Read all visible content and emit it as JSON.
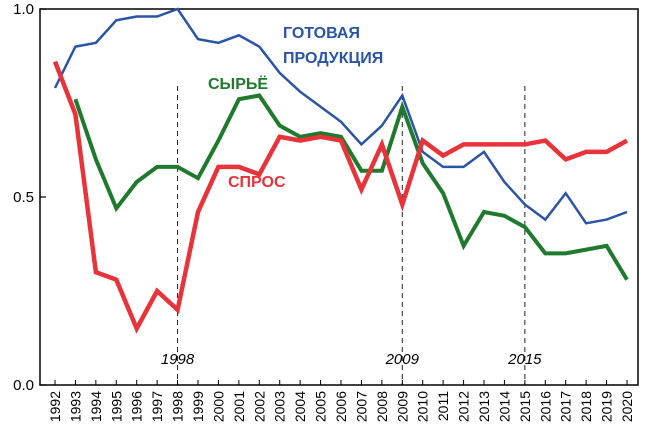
{
  "chart_data": {
    "type": "line",
    "x": [
      1992,
      1993,
      1994,
      1995,
      1996,
      1997,
      1998,
      1999,
      2000,
      2001,
      2002,
      2003,
      2004,
      2005,
      2006,
      2007,
      2008,
      2009,
      2010,
      2011,
      2012,
      2013,
      2014,
      2015,
      2016,
      2017,
      2018,
      2019,
      2020
    ],
    "xlim": [
      1992,
      2020
    ],
    "ylim": [
      0.0,
      1.0
    ],
    "yticks": [
      "0.0",
      "0.5",
      "1.0"
    ],
    "grid": false,
    "title": "",
    "xlabel": "",
    "ylabel": "",
    "series": [
      {
        "name": "ГОТОВАЯ ПРОДУКЦИЯ",
        "label_lines": [
          "ГОТОВАЯ",
          "ПРОДУКЦИЯ"
        ],
        "color": "#2b54a6",
        "values": [
          0.79,
          0.9,
          0.91,
          0.97,
          0.98,
          0.98,
          1.0,
          0.92,
          0.91,
          0.93,
          0.9,
          0.83,
          0.78,
          0.74,
          0.7,
          0.64,
          0.69,
          0.77,
          0.62,
          0.58,
          0.58,
          0.62,
          0.54,
          0.48,
          0.44,
          0.51,
          0.43,
          0.44,
          0.46
        ]
      },
      {
        "name": "СЫРЬЁ",
        "label_lines": [
          "СЫРЬЁ"
        ],
        "color": "#1f7a2e",
        "values": [
          null,
          0.76,
          0.6,
          0.47,
          0.54,
          0.58,
          0.58,
          0.55,
          0.65,
          0.76,
          0.77,
          0.69,
          0.66,
          0.67,
          0.66,
          0.57,
          0.57,
          0.74,
          0.59,
          0.51,
          0.37,
          0.46,
          0.45,
          0.42,
          0.35,
          0.35,
          0.36,
          0.37,
          0.28
        ]
      },
      {
        "name": "СПРОС",
        "label_lines": [
          "СПРОС"
        ],
        "color": "#e8333a",
        "values": [
          0.86,
          0.72,
          0.3,
          0.28,
          0.15,
          0.25,
          0.2,
          0.46,
          0.58,
          0.58,
          0.56,
          0.66,
          0.65,
          0.66,
          0.65,
          0.52,
          0.64,
          0.48,
          0.65,
          0.61,
          0.64,
          0.64,
          0.64,
          0.64,
          0.65,
          0.6,
          0.62,
          0.62,
          0.65
        ]
      }
    ],
    "markers": [
      {
        "x": 1998,
        "label": "1998"
      },
      {
        "x": 2009,
        "label": "2009"
      },
      {
        "x": 2015,
        "label": "2015"
      }
    ]
  }
}
